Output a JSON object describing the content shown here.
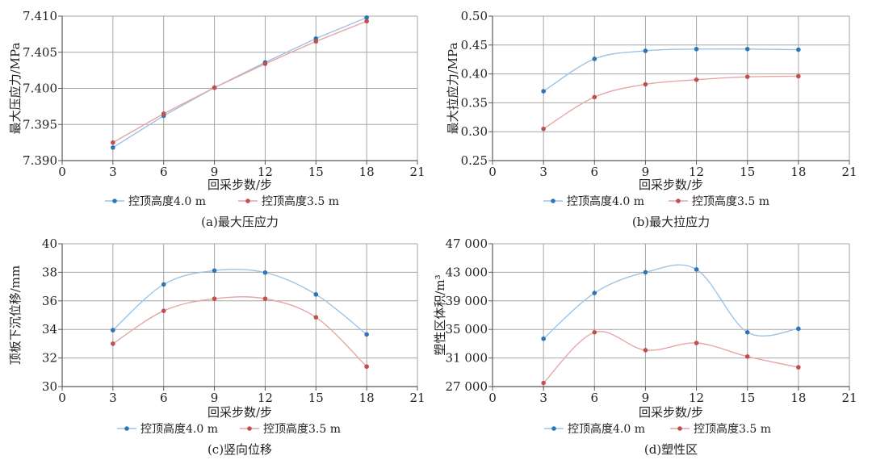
{
  "colors": {
    "series1": "#2e75b6",
    "series1_line": "#9dc3e6",
    "series2": "#c0504d",
    "series2_line": "#e6a6a5",
    "grid": "#a6a6a6",
    "axis": "#595959"
  },
  "chart_data": [
    {
      "type": "line",
      "caption": "(a)最大压应力",
      "xlabel": "回采步数/步",
      "ylabel": "最大压应力/MPa",
      "xlim": [
        0,
        21
      ],
      "ylim": [
        7.39,
        7.41
      ],
      "x_ticks": [
        "0",
        "3",
        "6",
        "9",
        "12",
        "15",
        "18",
        "21"
      ],
      "y_ticks": [
        "7.390",
        "7.395",
        "7.400",
        "7.405",
        "7.410"
      ],
      "grid": true,
      "smooth": false,
      "legend_position": "bottom",
      "x": [
        3,
        6,
        9,
        12,
        15,
        18
      ],
      "series": [
        {
          "name": "控顶高度4.0 m",
          "values": [
            7.3918,
            7.3962,
            7.4001,
            7.4036,
            7.4069,
            7.4098
          ]
        },
        {
          "name": "控顶高度3.5 m",
          "values": [
            7.3925,
            7.3965,
            7.4001,
            7.4034,
            7.4065,
            7.4093
          ]
        }
      ]
    },
    {
      "type": "line",
      "caption": "(b)最大拉应力",
      "xlabel": "回采步数/步",
      "ylabel": "最大拉应力/MPa",
      "xlim": [
        0,
        21
      ],
      "ylim": [
        0.25,
        0.5
      ],
      "x_ticks": [
        "0",
        "3",
        "6",
        "9",
        "12",
        "15",
        "18",
        "21"
      ],
      "y_ticks": [
        "0.25",
        "0.30",
        "0.35",
        "0.40",
        "0.45",
        "0.50"
      ],
      "grid": true,
      "smooth": true,
      "legend_position": "bottom",
      "x": [
        3,
        6,
        9,
        12,
        15,
        18
      ],
      "series": [
        {
          "name": "控顶高度4.0 m",
          "values": [
            0.37,
            0.426,
            0.44,
            0.443,
            0.443,
            0.442
          ]
        },
        {
          "name": "控顶高度3.5 m",
          "values": [
            0.305,
            0.36,
            0.382,
            0.39,
            0.395,
            0.396
          ]
        }
      ]
    },
    {
      "type": "line",
      "caption": "(c)竖向位移",
      "xlabel": "回采步数/步",
      "ylabel": "顶板下沉位移/mm",
      "xlim": [
        0,
        21
      ],
      "ylim": [
        30,
        40
      ],
      "x_ticks": [
        "0",
        "3",
        "6",
        "9",
        "12",
        "15",
        "18",
        "21"
      ],
      "y_ticks": [
        "30",
        "32",
        "34",
        "36",
        "38",
        "40"
      ],
      "grid": true,
      "smooth": true,
      "legend_position": "bottom",
      "x": [
        3,
        6,
        9,
        12,
        15,
        18
      ],
      "series": [
        {
          "name": "控顶高度4.0 m",
          "values": [
            33.95,
            37.15,
            38.12,
            37.98,
            36.45,
            33.65
          ]
        },
        {
          "name": "控顶高度3.5 m",
          "values": [
            33.0,
            35.3,
            36.15,
            36.15,
            34.85,
            31.4
          ]
        }
      ]
    },
    {
      "type": "line",
      "caption": "(d)塑性区",
      "xlabel": "回采步数/步",
      "ylabel": "塑性区体积/m³",
      "xlim": [
        0,
        21
      ],
      "ylim": [
        27000,
        47000
      ],
      "x_ticks": [
        "0",
        "3",
        "6",
        "9",
        "12",
        "15",
        "18",
        "21"
      ],
      "y_ticks": [
        "27 000",
        "31 000",
        "35 000",
        "39 000",
        "43 000",
        "47 000"
      ],
      "grid": true,
      "smooth": true,
      "legend_position": "bottom",
      "x": [
        3,
        6,
        9,
        12,
        15,
        18
      ],
      "series": [
        {
          "name": "控顶高度4.0 m",
          "values": [
            33700,
            40100,
            43000,
            43400,
            34600,
            35100
          ]
        },
        {
          "name": "控顶高度3.5 m",
          "values": [
            27500,
            34600,
            32100,
            33100,
            31200,
            29700
          ]
        }
      ]
    }
  ]
}
